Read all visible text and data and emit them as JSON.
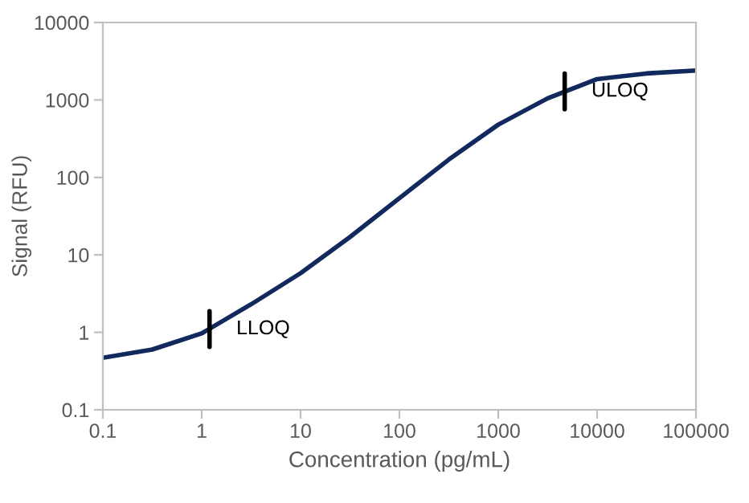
{
  "chart_data": {
    "type": "line",
    "xlabel": "Concentration (pg/mL)",
    "ylabel": "Signal (RFU)",
    "log": "xy",
    "grid": false,
    "marker": "none",
    "line_style": "solid",
    "x": [
      0.1,
      0.316,
      1,
      3.16,
      10,
      31.6,
      100,
      316,
      1000,
      3160,
      10000,
      31600,
      100000
    ],
    "series": [
      {
        "color": "#12295e",
        "values": [
          0.47,
          0.6,
          0.97,
          2.3,
          5.8,
          17,
          54,
          170,
          480,
          1050,
          1860,
          2200,
          2400
        ]
      }
    ],
    "xlim": [
      0.1,
      100000
    ],
    "ylim": [
      0.1,
      10000
    ],
    "xticks": [
      0.1,
      1,
      10,
      100,
      1000,
      10000,
      100000
    ],
    "yticks": [
      0.1,
      1,
      10,
      100,
      1000,
      10000
    ],
    "annotations": [
      {
        "text": "LLOQ",
        "x": 1.2,
        "y": 1.1
      },
      {
        "text": "ULOQ",
        "x": 4700,
        "y": 1290
      }
    ]
  }
}
